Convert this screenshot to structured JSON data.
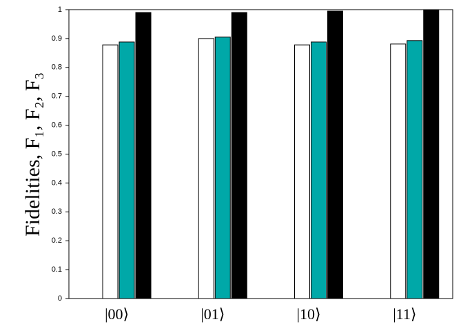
{
  "chart_data": {
    "type": "bar",
    "y_label": "Fidelities, F₁, F₂, F₃",
    "categories": [
      "|00⟩",
      "|01⟩",
      "|10⟩",
      "|11⟩"
    ],
    "series": [
      {
        "color": "#ffffff",
        "values": [
          0.878,
          0.9,
          0.878,
          0.881
        ]
      },
      {
        "color": "#00a8a8",
        "values": [
          0.888,
          0.905,
          0.888,
          0.893
        ]
      },
      {
        "color": "#000000",
        "values": [
          0.99,
          0.99,
          0.995,
          1.0
        ]
      }
    ],
    "ylim": [
      0,
      1
    ],
    "yticks": [
      0,
      0.1,
      0.2,
      0.3,
      0.4,
      0.5,
      0.6,
      0.7,
      0.8,
      0.9,
      1
    ]
  }
}
